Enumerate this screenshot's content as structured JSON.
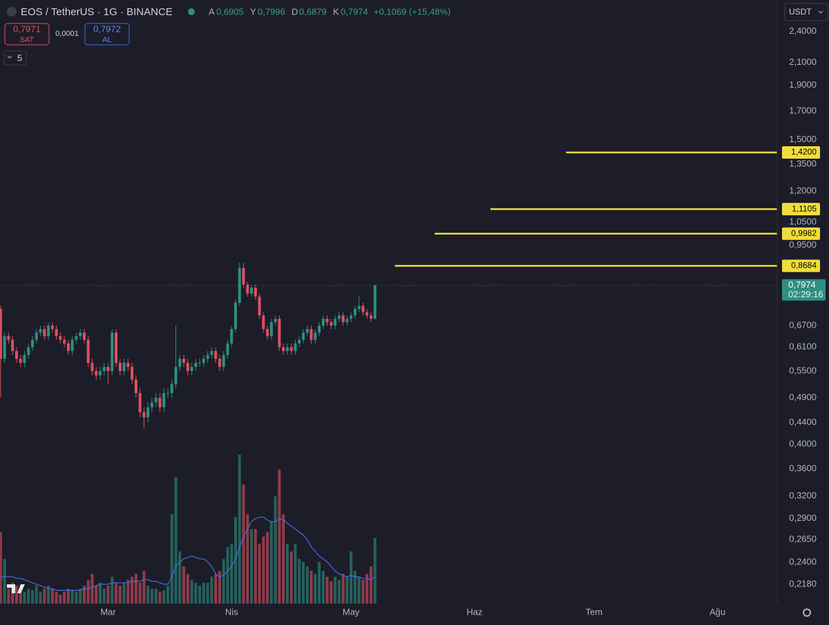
{
  "chart_data": {
    "type": "candlestick",
    "title": "EOS / TetherUS · 1G · BINANCE",
    "legend": [
      {
        "key": "A",
        "value": "0,6905"
      },
      {
        "key": "Y",
        "value": "0,7996"
      },
      {
        "key": "D",
        "value": "0,6879"
      },
      {
        "key": "K",
        "value": "0,7974"
      }
    ],
    "change": "+0,1069 (+15,48%)",
    "ui": {
      "sell_price": "0,7971",
      "sell": "SAT",
      "spread": "0,0001",
      "buy_price": "0,7972",
      "buy": "AL",
      "indicators": "5",
      "currency": "USDT"
    },
    "colors": {
      "up": "#2e8f80",
      "down": "#e0505f",
      "ma": "#3f6fe8",
      "level": "#f1dd3a"
    },
    "ohlc": [
      [
        0.72,
        0.73,
        0.49,
        0.58
      ],
      [
        0.58,
        0.65,
        0.57,
        0.64
      ],
      [
        0.64,
        0.65,
        0.62,
        0.63
      ],
      [
        0.63,
        0.64,
        0.59,
        0.6
      ],
      [
        0.6,
        0.61,
        0.57,
        0.58
      ],
      [
        0.58,
        0.59,
        0.56,
        0.57
      ],
      [
        0.57,
        0.6,
        0.56,
        0.59
      ],
      [
        0.59,
        0.62,
        0.58,
        0.61
      ],
      [
        0.61,
        0.64,
        0.6,
        0.63
      ],
      [
        0.63,
        0.66,
        0.62,
        0.65
      ],
      [
        0.65,
        0.67,
        0.64,
        0.66
      ],
      [
        0.66,
        0.67,
        0.63,
        0.64
      ],
      [
        0.64,
        0.68,
        0.63,
        0.67
      ],
      [
        0.67,
        0.68,
        0.65,
        0.66
      ],
      [
        0.66,
        0.67,
        0.63,
        0.64
      ],
      [
        0.64,
        0.65,
        0.62,
        0.63
      ],
      [
        0.63,
        0.64,
        0.61,
        0.62
      ],
      [
        0.62,
        0.63,
        0.59,
        0.6
      ],
      [
        0.6,
        0.64,
        0.59,
        0.63
      ],
      [
        0.63,
        0.65,
        0.62,
        0.64
      ],
      [
        0.64,
        0.66,
        0.63,
        0.65
      ],
      [
        0.65,
        0.66,
        0.62,
        0.63
      ],
      [
        0.63,
        0.64,
        0.56,
        0.57
      ],
      [
        0.57,
        0.58,
        0.54,
        0.55
      ],
      [
        0.55,
        0.56,
        0.53,
        0.54
      ],
      [
        0.54,
        0.56,
        0.53,
        0.55
      ],
      [
        0.55,
        0.57,
        0.54,
        0.56
      ],
      [
        0.56,
        0.57,
        0.52,
        0.55
      ],
      [
        0.55,
        0.66,
        0.54,
        0.65
      ],
      [
        0.65,
        0.66,
        0.56,
        0.57
      ],
      [
        0.57,
        0.58,
        0.54,
        0.55
      ],
      [
        0.55,
        0.58,
        0.54,
        0.57
      ],
      [
        0.57,
        0.58,
        0.55,
        0.56
      ],
      [
        0.56,
        0.57,
        0.52,
        0.53
      ],
      [
        0.53,
        0.54,
        0.49,
        0.5
      ],
      [
        0.5,
        0.51,
        0.45,
        0.46
      ],
      [
        0.46,
        0.47,
        0.43,
        0.45
      ],
      [
        0.45,
        0.48,
        0.44,
        0.47
      ],
      [
        0.47,
        0.49,
        0.46,
        0.48
      ],
      [
        0.48,
        0.5,
        0.47,
        0.49
      ],
      [
        0.49,
        0.5,
        0.46,
        0.47
      ],
      [
        0.47,
        0.51,
        0.46,
        0.5
      ],
      [
        0.5,
        0.51,
        0.49,
        0.5
      ],
      [
        0.5,
        0.53,
        0.49,
        0.52
      ],
      [
        0.52,
        0.67,
        0.51,
        0.56
      ],
      [
        0.56,
        0.59,
        0.55,
        0.58
      ],
      [
        0.58,
        0.59,
        0.56,
        0.57
      ],
      [
        0.57,
        0.58,
        0.54,
        0.55
      ],
      [
        0.55,
        0.57,
        0.54,
        0.56
      ],
      [
        0.56,
        0.58,
        0.55,
        0.57
      ],
      [
        0.57,
        0.58,
        0.56,
        0.57
      ],
      [
        0.57,
        0.59,
        0.56,
        0.58
      ],
      [
        0.58,
        0.6,
        0.57,
        0.59
      ],
      [
        0.59,
        0.61,
        0.58,
        0.6
      ],
      [
        0.6,
        0.61,
        0.57,
        0.58
      ],
      [
        0.58,
        0.59,
        0.55,
        0.56
      ],
      [
        0.56,
        0.6,
        0.55,
        0.59
      ],
      [
        0.59,
        0.63,
        0.58,
        0.62
      ],
      [
        0.62,
        0.67,
        0.61,
        0.66
      ],
      [
        0.66,
        0.75,
        0.65,
        0.74
      ],
      [
        0.74,
        0.88,
        0.73,
        0.86
      ],
      [
        0.86,
        0.88,
        0.79,
        0.8
      ],
      [
        0.8,
        0.81,
        0.76,
        0.77
      ],
      [
        0.77,
        0.8,
        0.76,
        0.79
      ],
      [
        0.79,
        0.8,
        0.75,
        0.76
      ],
      [
        0.76,
        0.77,
        0.69,
        0.7
      ],
      [
        0.7,
        0.71,
        0.65,
        0.66
      ],
      [
        0.66,
        0.67,
        0.63,
        0.64
      ],
      [
        0.64,
        0.69,
        0.63,
        0.68
      ],
      [
        0.68,
        0.7,
        0.67,
        0.69
      ],
      [
        0.69,
        0.7,
        0.6,
        0.61
      ],
      [
        0.61,
        0.62,
        0.59,
        0.6
      ],
      [
        0.6,
        0.62,
        0.59,
        0.61
      ],
      [
        0.61,
        0.62,
        0.59,
        0.6
      ],
      [
        0.6,
        0.63,
        0.59,
        0.62
      ],
      [
        0.62,
        0.64,
        0.61,
        0.63
      ],
      [
        0.63,
        0.66,
        0.62,
        0.65
      ],
      [
        0.65,
        0.67,
        0.64,
        0.66
      ],
      [
        0.66,
        0.67,
        0.62,
        0.63
      ],
      [
        0.63,
        0.66,
        0.62,
        0.65
      ],
      [
        0.65,
        0.68,
        0.64,
        0.67
      ],
      [
        0.67,
        0.7,
        0.66,
        0.69
      ],
      [
        0.69,
        0.7,
        0.67,
        0.68
      ],
      [
        0.68,
        0.69,
        0.66,
        0.67
      ],
      [
        0.67,
        0.7,
        0.66,
        0.69
      ],
      [
        0.69,
        0.71,
        0.68,
        0.7
      ],
      [
        0.7,
        0.71,
        0.67,
        0.68
      ],
      [
        0.68,
        0.7,
        0.67,
        0.69
      ],
      [
        0.69,
        0.71,
        0.68,
        0.7
      ],
      [
        0.7,
        0.73,
        0.69,
        0.72
      ],
      [
        0.72,
        0.76,
        0.71,
        0.73
      ],
      [
        0.73,
        0.74,
        0.7,
        0.71
      ],
      [
        0.71,
        0.72,
        0.69,
        0.7
      ],
      [
        0.7,
        0.71,
        0.68,
        0.69
      ],
      [
        0.6905,
        0.7996,
        0.6879,
        0.7974
      ]
    ],
    "volume": [
      48,
      30,
      10,
      14,
      12,
      10,
      8,
      10,
      9,
      12,
      8,
      10,
      12,
      10,
      8,
      6,
      8,
      10,
      9,
      8,
      10,
      12,
      16,
      20,
      12,
      14,
      10,
      12,
      18,
      14,
      12,
      14,
      16,
      18,
      20,
      14,
      22,
      12,
      10,
      10,
      8,
      9,
      12,
      60,
      85,
      35,
      25,
      20,
      16,
      14,
      12,
      14,
      14,
      18,
      20,
      22,
      30,
      38,
      40,
      58,
      100,
      80,
      60,
      50,
      50,
      40,
      45,
      48,
      55,
      72,
      90,
      60,
      40,
      35,
      40,
      30,
      28,
      25,
      22,
      20,
      28,
      22,
      18,
      15,
      18,
      16,
      20,
      18,
      35,
      22,
      18,
      16,
      20,
      25,
      44
    ],
    "volume_ma": [
      18,
      18,
      18,
      18,
      17,
      17,
      16,
      15,
      14,
      13,
      12,
      11,
      10,
      10,
      9,
      9,
      9,
      9,
      9,
      9,
      9,
      10,
      10,
      11,
      12,
      13,
      13,
      13,
      14,
      14,
      14,
      14,
      14,
      15,
      15,
      15,
      16,
      16,
      15,
      15,
      14,
      13,
      13,
      18,
      25,
      28,
      30,
      31,
      32,
      31,
      30,
      30,
      28,
      25,
      20,
      18,
      19,
      22,
      25,
      30,
      38,
      45,
      50,
      55,
      57,
      58,
      58,
      56,
      55,
      55,
      57,
      56,
      54,
      52,
      50,
      48,
      46,
      43,
      38,
      35,
      32,
      30,
      28,
      25,
      22,
      20,
      19,
      18,
      19,
      18,
      18,
      17,
      17,
      16,
      18
    ],
    "volume_ylim": [
      0,
      100
    ],
    "xlim": [
      -0.15,
      195
    ],
    "xticks": [
      {
        "value": 27,
        "label": "Mar"
      },
      {
        "value": 58,
        "label": "Nis"
      },
      {
        "value": 88,
        "label": "May"
      },
      {
        "value": 119,
        "label": "Haz"
      },
      {
        "value": 149,
        "label": "Tem"
      },
      {
        "value": 180,
        "label": "Ağu"
      }
    ],
    "ylim": [
      0.2005,
      2.752
    ],
    "log_scale": true,
    "grid": true,
    "yticks": [
      {
        "value": 2.4,
        "label": "2,4000"
      },
      {
        "value": 2.1,
        "label": "2,1000"
      },
      {
        "value": 1.9,
        "label": "1,9000"
      },
      {
        "value": 1.7,
        "label": "1,7000"
      },
      {
        "value": 1.5,
        "label": "1,5000"
      },
      {
        "value": 1.35,
        "label": "1,3500"
      },
      {
        "value": 1.2,
        "label": "1,2000"
      },
      {
        "value": 1.05,
        "label": "1,0500"
      },
      {
        "value": 0.95,
        "label": "0,9500"
      },
      {
        "value": 0.67,
        "label": "0,6700"
      },
      {
        "value": 0.61,
        "label": "0,6100"
      },
      {
        "value": 0.55,
        "label": "0,5500"
      },
      {
        "value": 0.49,
        "label": "0,4900"
      },
      {
        "value": 0.44,
        "label": "0,4400"
      },
      {
        "value": 0.4,
        "label": "0,4000"
      },
      {
        "value": 0.36,
        "label": "0,3600"
      },
      {
        "value": 0.32,
        "label": "0,3200"
      },
      {
        "value": 0.29,
        "label": "0,2900"
      },
      {
        "value": 0.265,
        "label": "0,2650"
      },
      {
        "value": 0.24,
        "label": "0,2400"
      },
      {
        "value": 0.218,
        "label": "0,2180"
      }
    ],
    "levels": [
      {
        "value": 1.42,
        "label": "1,4200",
        "start": 142
      },
      {
        "value": 1.1105,
        "label": "1,1105",
        "start": 123
      },
      {
        "value": 0.9982,
        "label": "0,9982",
        "start": 109
      },
      {
        "value": 0.8684,
        "label": "0,8684",
        "start": 99
      }
    ],
    "last_price": {
      "value": 0.7974,
      "label": "0,7974",
      "countdown": "02:29:16"
    }
  }
}
